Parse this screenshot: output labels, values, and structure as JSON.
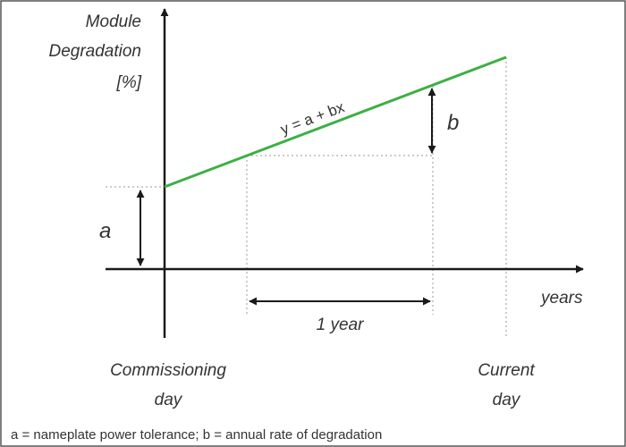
{
  "diagram": {
    "y_axis_label": [
      "Module",
      "Degradation",
      "[%]"
    ],
    "x_axis_label": "years",
    "equation": "y = a + bx",
    "label_a": "a",
    "label_b": "b",
    "interval_label": "1 year",
    "start_label": [
      "Commissioning",
      "day"
    ],
    "end_label": [
      "Current",
      "day"
    ],
    "caption": "a = nameplate power tolerance; b = annual rate of degradation",
    "colors": {
      "trend_line": "#3cb043",
      "axes": "#1a1a1a",
      "guides": "#9a9a9a",
      "text": "#333333"
    }
  }
}
